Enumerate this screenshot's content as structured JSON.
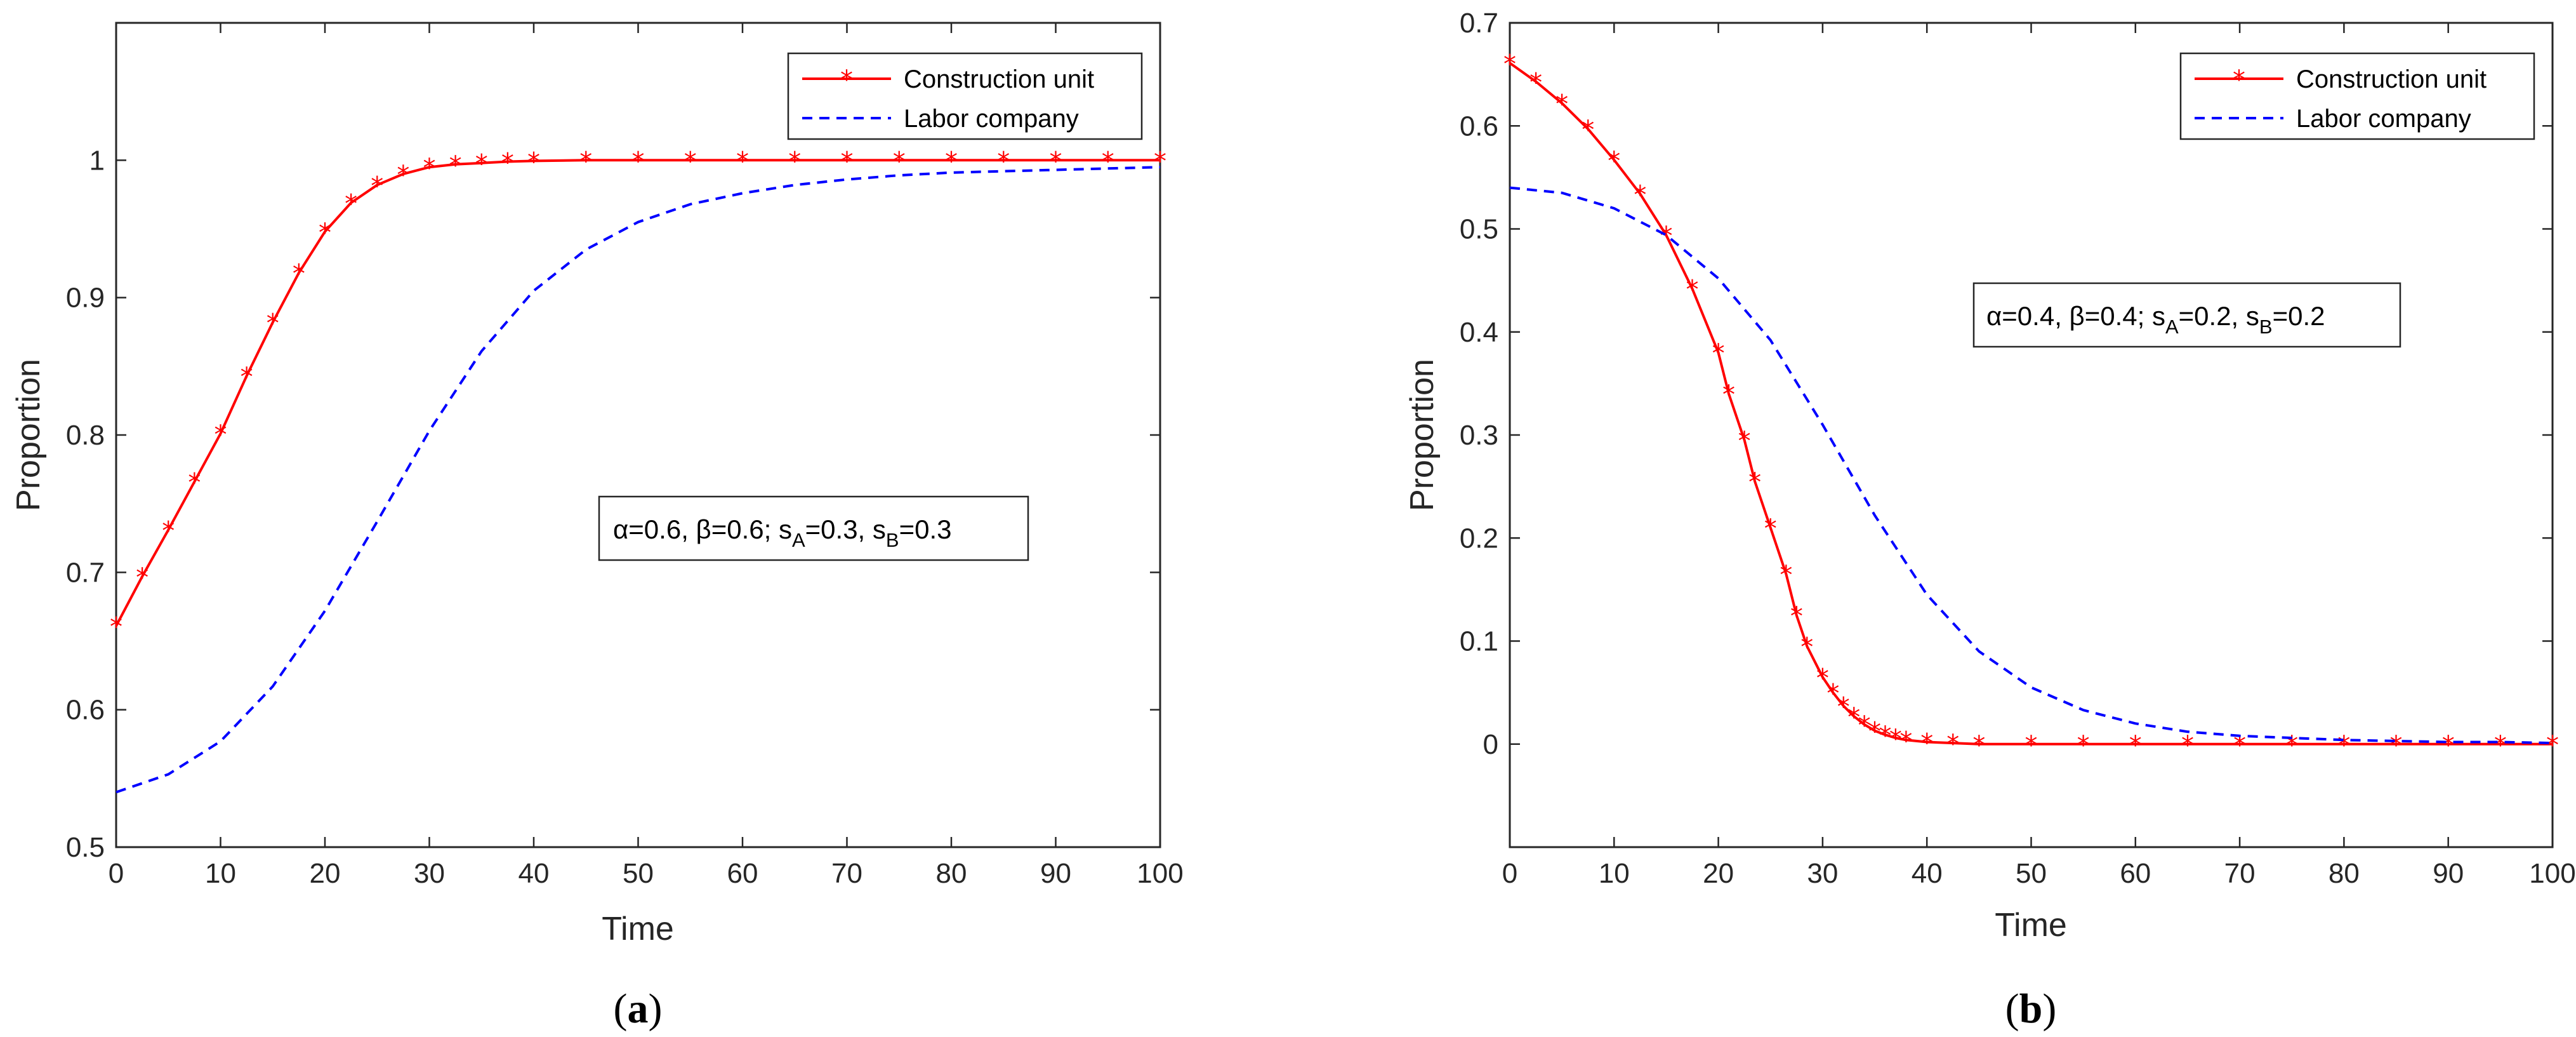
{
  "chart_data": [
    {
      "type": "line",
      "panel_label_open": "(",
      "panel_label_letter": "a",
      "panel_label_close": ")",
      "xlabel": "Time",
      "ylabel": "Proportion",
      "xlim": [
        0,
        100
      ],
      "ylim": [
        0.5,
        1.1
      ],
      "xticks": [
        0,
        10,
        20,
        30,
        40,
        50,
        60,
        70,
        80,
        90,
        100
      ],
      "yticks": [
        0.5,
        0.6,
        0.7,
        0.8,
        0.9,
        1
      ],
      "ytick_labels": [
        "0.5",
        "0.6",
        "0.7",
        "0.8",
        "0.9",
        "1"
      ],
      "legend_location": "top-right",
      "annotation": {
        "prefix": "α=0.6, β=0.6; s",
        "sub1": "A",
        "mid": "=0.3, s",
        "sub2": "B",
        "suffix": "=0.3"
      },
      "series": [
        {
          "name": "Construction unit",
          "color": "#ff0000",
          "line_style": "solid",
          "marker": "asterisk",
          "x": [
            0,
            2.5,
            5,
            7.5,
            10,
            12.5,
            15,
            17.5,
            20,
            22.5,
            25,
            27.5,
            30,
            32.5,
            35,
            37.5,
            40,
            45,
            50,
            55,
            60,
            65,
            70,
            75,
            80,
            85,
            90,
            95,
            100
          ],
          "y": [
            0.661,
            0.697,
            0.731,
            0.766,
            0.801,
            0.843,
            0.882,
            0.918,
            0.948,
            0.969,
            0.982,
            0.99,
            0.995,
            0.997,
            0.998,
            0.999,
            0.9995,
            1,
            1,
            1,
            1,
            1,
            1,
            1,
            1,
            1,
            1,
            1,
            1
          ]
        },
        {
          "name": "Labor company",
          "color": "#0000ff",
          "line_style": "dashed",
          "marker": "none",
          "x": [
            0,
            5,
            10,
            15,
            20,
            25,
            30,
            35,
            40,
            45,
            50,
            55,
            60,
            65,
            70,
            75,
            80,
            85,
            90,
            95,
            100
          ],
          "y": [
            0.54,
            0.553,
            0.577,
            0.617,
            0.672,
            0.737,
            0.803,
            0.861,
            0.905,
            0.935,
            0.955,
            0.968,
            0.976,
            0.982,
            0.986,
            0.989,
            0.991,
            0.992,
            0.993,
            0.994,
            0.995
          ]
        }
      ]
    },
    {
      "type": "line",
      "panel_label_open": "(",
      "panel_label_letter": "b",
      "panel_label_close": ")",
      "xlabel": "Time",
      "ylabel": "Proportion",
      "xlim": [
        0,
        100
      ],
      "ylim": [
        -0.1,
        0.7
      ],
      "xticks": [
        0,
        10,
        20,
        30,
        40,
        50,
        60,
        70,
        80,
        90,
        100
      ],
      "yticks": [
        0,
        0.1,
        0.2,
        0.3,
        0.4,
        0.5,
        0.6,
        0.7
      ],
      "ytick_labels": [
        "0",
        "0.1",
        "0.2",
        "0.3",
        "0.4",
        "0.5",
        "0.6",
        "0.7"
      ],
      "legend_location": "top-right",
      "annotation": {
        "prefix": "α=0.4, β=0.4; s",
        "sub1": "A",
        "mid": "=0.2, s",
        "sub2": "B",
        "suffix": "=0.2"
      },
      "series": [
        {
          "name": "Construction unit",
          "color": "#ff0000",
          "line_style": "solid",
          "marker": "asterisk",
          "x": [
            0,
            2.5,
            5,
            7.5,
            10,
            12.5,
            15,
            17.5,
            20,
            21,
            22.5,
            23.5,
            25,
            26.5,
            27.5,
            28.5,
            30,
            31,
            32,
            33,
            34,
            35,
            36,
            37,
            38,
            40,
            42.5,
            45,
            50,
            55,
            60,
            65,
            70,
            75,
            80,
            85,
            90,
            95,
            100
          ],
          "y": [
            0.661,
            0.643,
            0.622,
            0.597,
            0.567,
            0.534,
            0.494,
            0.442,
            0.38,
            0.34,
            0.295,
            0.255,
            0.21,
            0.165,
            0.125,
            0.095,
            0.065,
            0.05,
            0.037,
            0.027,
            0.019,
            0.013,
            0.009,
            0.006,
            0.004,
            0.002,
            0.001,
            0,
            0,
            0,
            0,
            0,
            0,
            0,
            0,
            0,
            0,
            0,
            0
          ]
        },
        {
          "name": "Labor company",
          "color": "#0000ff",
          "line_style": "dashed",
          "marker": "none",
          "x": [
            0,
            5,
            10,
            15,
            20,
            25,
            30,
            35,
            40,
            45,
            50,
            55,
            60,
            65,
            70,
            75,
            80,
            85,
            90,
            95,
            100
          ],
          "y": [
            0.54,
            0.535,
            0.52,
            0.494,
            0.452,
            0.392,
            0.31,
            0.222,
            0.145,
            0.09,
            0.055,
            0.033,
            0.02,
            0.012,
            0.008,
            0.006,
            0.004,
            0.003,
            0.002,
            0.002,
            0.001
          ]
        }
      ]
    }
  ]
}
